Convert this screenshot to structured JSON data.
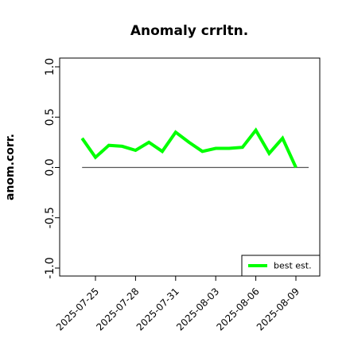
{
  "chart_data": {
    "type": "line",
    "title": "Anomaly crrltn.",
    "xlabel": "",
    "ylabel": "anom.corr.",
    "ylim": [
      -1.0,
      1.0
    ],
    "yticks": [
      "-1.0",
      "-0.5",
      "0.0",
      "0.5",
      "1.0"
    ],
    "x": [
      "2025-07-24",
      "2025-07-25",
      "2025-07-26",
      "2025-07-27",
      "2025-07-28",
      "2025-07-29",
      "2025-07-30",
      "2025-07-31",
      "2025-08-01",
      "2025-08-02",
      "2025-08-03",
      "2025-08-04",
      "2025-08-05",
      "2025-08-06",
      "2025-08-07",
      "2025-08-08",
      "2025-08-09"
    ],
    "xticks": [
      {
        "label": "2025-07-25",
        "color": "#000000"
      },
      {
        "label": "2025-07-28",
        "color": "#000000"
      },
      {
        "label": "2025-07-31",
        "color": "#1e8c1e"
      },
      {
        "label": "2025-08-03",
        "color": "#000000"
      },
      {
        "label": "2025-08-06",
        "color": "#000000"
      },
      {
        "label": "2025-08-09",
        "color": "#000000"
      }
    ],
    "reference_line": {
      "y": 0.0,
      "color": "#555555"
    },
    "series": [
      {
        "name": "best est.",
        "color": "#00ff00",
        "values": [
          0.29,
          0.1,
          0.22,
          0.21,
          0.17,
          0.25,
          0.16,
          0.35,
          0.25,
          0.16,
          0.19,
          0.19,
          0.2,
          0.37,
          0.14,
          0.29,
          0.0
        ]
      }
    ],
    "legend": {
      "position": "bottom-right"
    },
    "grid": false
  }
}
